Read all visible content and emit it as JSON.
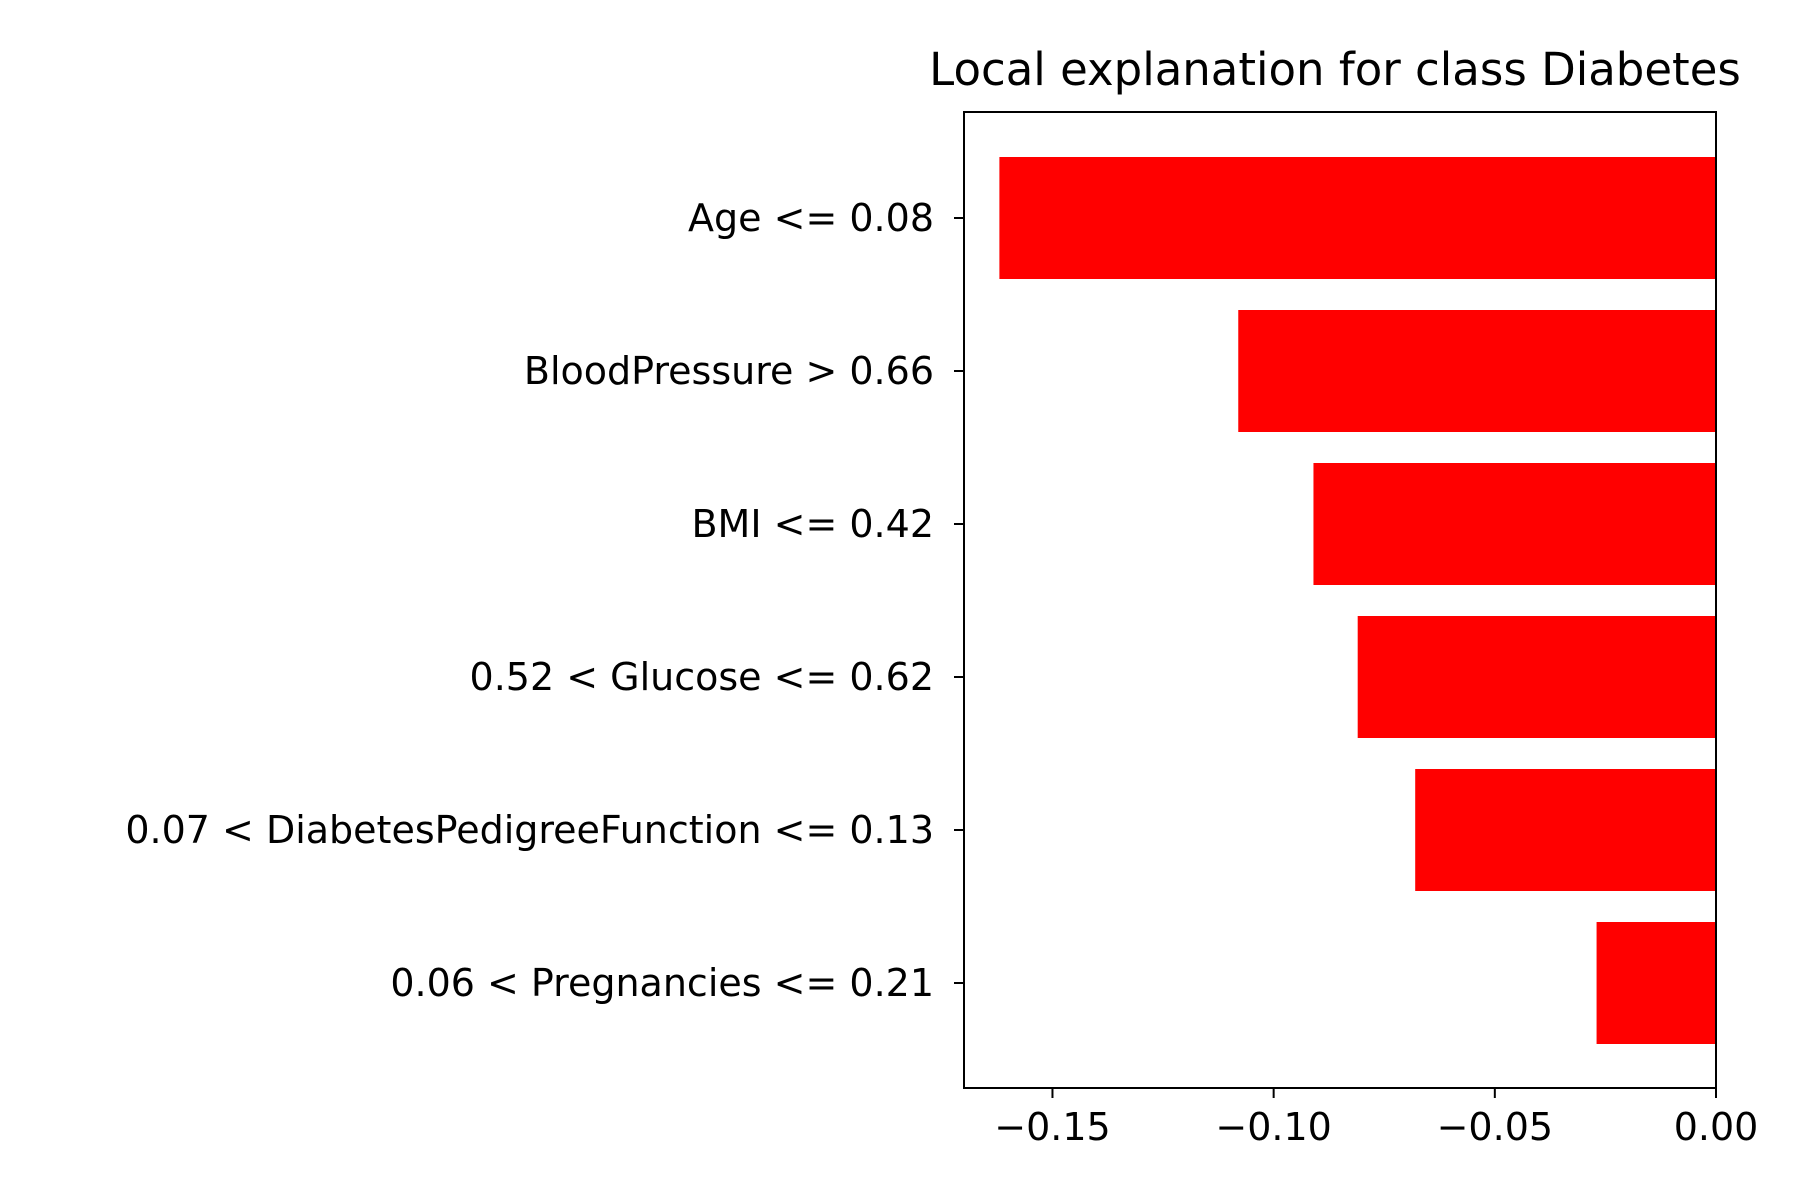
{
  "chart_data": {
    "type": "bar",
    "orientation": "horizontal",
    "title": "Local explanation for class Diabetes",
    "xlabel": "",
    "ylabel": "",
    "categories": [
      "Age <= 0.08",
      "BloodPressure > 0.66",
      "BMI <= 0.42",
      "0.52 < Glucose <= 0.62",
      "0.07 < DiabetesPedigreeFunction <= 0.13",
      "0.06 < Pregnancies <= 0.21"
    ],
    "values": [
      -0.162,
      -0.108,
      -0.091,
      -0.081,
      -0.068,
      -0.027
    ],
    "xlim": [
      -0.17,
      0.0
    ],
    "xticks": [
      -0.15,
      -0.1,
      -0.05,
      0.0
    ],
    "xtick_labels": [
      "−0.15",
      "−0.10",
      "−0.05",
      "0.00"
    ],
    "bar_color": "#ff0000",
    "grid": false,
    "legend": "none"
  }
}
